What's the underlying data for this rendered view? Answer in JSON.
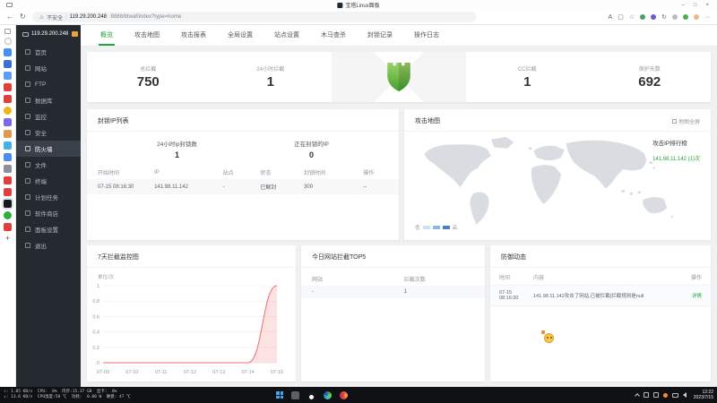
{
  "browser": {
    "window_title": "宝塔Linux面板",
    "nav": {
      "security_label": "不安全",
      "url_host": "119.29.200.248",
      "url_path": ":8888/btwaf/index?type=home",
      "right_icons": [
        {
          "name": "read-aloud-icon",
          "glyph": "A"
        },
        {
          "name": "collections-icon",
          "glyph": "▢"
        },
        {
          "name": "favorites-icon",
          "glyph": "☆"
        },
        {
          "name": "extension-icon",
          "dot": "#4f9e62"
        },
        {
          "name": "extension-icon",
          "dot": "#6f5bd0"
        },
        {
          "name": "history-icon",
          "glyph": "↻"
        },
        {
          "name": "extension-icon",
          "dot": "#b9bdc3"
        },
        {
          "name": "extension-icon",
          "dot": "#4fae4e"
        },
        {
          "name": "profile-avatar",
          "dot": "#e8b88a"
        },
        {
          "name": "more-menu-icon",
          "glyph": "···"
        }
      ]
    },
    "vertical_tabs": [
      {
        "name": "tab-favicon",
        "color": "#4a8cf7"
      },
      {
        "name": "tab-favicon",
        "color": "#3a6fd8"
      },
      {
        "name": "tab-favicon",
        "color": "#5a9cf8"
      },
      {
        "name": "tab-favicon",
        "color": "#e23e3e"
      },
      {
        "name": "tab-favicon",
        "color": "#e23e3e"
      },
      {
        "name": "tab-favicon",
        "color": "#f0b41e",
        "round": true
      },
      {
        "name": "tab-favicon",
        "color": "#7b68ee"
      },
      {
        "name": "tab-favicon",
        "color": "#e09a4e"
      },
      {
        "name": "tab-favicon",
        "color": "#44b0e8"
      },
      {
        "name": "tab-favicon",
        "color": "#4a8cf7"
      },
      {
        "name": "tab-favicon",
        "color": "#8a8f98"
      },
      {
        "name": "tab-favicon",
        "color": "#e23e3e"
      },
      {
        "name": "tab-favicon",
        "color": "#e23e3e"
      },
      {
        "name": "tab-favicon-active",
        "color": "#17181c",
        "active": true
      },
      {
        "name": "tab-favicon",
        "color": "#2fae3e",
        "round": true
      },
      {
        "name": "tab-favicon",
        "color": "#e23e3e"
      }
    ]
  },
  "icons": {
    "back": "←",
    "refresh": "↻",
    "warning": "⚠",
    "minimize": "–",
    "maximize": "□",
    "close": "×",
    "new_tab": "+",
    "divider": "|"
  },
  "panel": {
    "sidebar": {
      "server_ip": "119.29.200.248",
      "items": [
        {
          "label": "首页",
          "icon": "home-icon",
          "active": false
        },
        {
          "label": "网站",
          "icon": "website-icon",
          "active": false
        },
        {
          "label": "FTP",
          "icon": "ftp-icon",
          "active": false
        },
        {
          "label": "数据库",
          "icon": "database-icon",
          "active": false
        },
        {
          "label": "监控",
          "icon": "monitor-icon",
          "active": false
        },
        {
          "label": "安全",
          "icon": "security-icon",
          "active": false
        },
        {
          "label": "防火墙",
          "icon": "firewall-icon",
          "active": true
        },
        {
          "label": "文件",
          "icon": "files-icon",
          "active": false
        },
        {
          "label": "终端",
          "icon": "terminal-icon",
          "active": false
        },
        {
          "label": "计划任务",
          "icon": "cron-icon",
          "active": false
        },
        {
          "label": "软件商店",
          "icon": "appstore-icon",
          "active": false
        },
        {
          "label": "面板设置",
          "icon": "settings-icon",
          "active": false
        },
        {
          "label": "退出",
          "icon": "logout-icon",
          "active": false
        }
      ]
    },
    "tabs": [
      {
        "label": "概览",
        "active": true
      },
      {
        "label": "攻击地图",
        "active": false
      },
      {
        "label": "攻击报表",
        "active": false
      },
      {
        "label": "全局设置",
        "active": false
      },
      {
        "label": "站点设置",
        "active": false
      },
      {
        "label": "木马查杀",
        "active": false
      },
      {
        "label": "封锁记录",
        "active": false
      },
      {
        "label": "操作日志",
        "active": false
      }
    ],
    "stats": {
      "left": [
        {
          "label": "总拦截",
          "value": "750"
        },
        {
          "label": "24小时拦截",
          "value": "1"
        }
      ],
      "right": [
        {
          "label": "CC拦截",
          "value": "1"
        },
        {
          "label": "保护天数",
          "value": "692"
        }
      ]
    },
    "block_panel": {
      "title": "封锁IP列表",
      "metrics": [
        {
          "label": "24小时ip封锁数",
          "value": "1"
        },
        {
          "label": "正在封锁的IP",
          "value": "0"
        }
      ],
      "columns": [
        "开始时间",
        "IP",
        "站点",
        "状态",
        "封锁时间",
        "操作"
      ],
      "rows": [
        [
          "07-15 08:16:30",
          "141.98.11.142",
          "-",
          "已解封",
          "300",
          "--"
        ]
      ]
    },
    "map_panel": {
      "title": "攻击地图",
      "fullscreen_label": "地图全屏",
      "ranking_title": "攻击IP排行榜",
      "ranking_entry": "141.98.11.142 (1)次",
      "legend_low": "低",
      "legend_high": "高"
    },
    "trend_panel": {
      "title": "7天拦截监控图",
      "unit_label": "单位/次"
    },
    "top5_panel": {
      "title": "今日网站拦截TOP5",
      "columns": [
        "网站",
        "拦截次数"
      ],
      "rows": [
        [
          "-",
          "1"
        ]
      ]
    },
    "defense_panel": {
      "title": "防御动态",
      "columns": [
        "时间",
        "内容",
        "操作"
      ],
      "rows": [
        {
          "time": "07-15 08:16:30",
          "content": "141.98.11.142攻击了网站,已被拦截|拦截规则是null",
          "action": "详情"
        }
      ]
    }
  },
  "chart_data": {
    "type": "area",
    "title": "7天拦截监控图",
    "ylabel": "单位/次",
    "x": [
      "07-09",
      "07-10",
      "07-11",
      "07-12",
      "07-13",
      "07-14",
      "07-15"
    ],
    "series": [
      {
        "name": "拦截次数",
        "values": [
          0,
          0,
          0,
          0,
          0,
          0,
          1
        ]
      }
    ],
    "ylim": [
      0,
      1
    ],
    "yticks": [
      0,
      0.2,
      0.4,
      0.6,
      0.8,
      1
    ],
    "grid": true,
    "legend_position": "none",
    "line_color": "#f56c6c",
    "fill_color": "rgba(245,108,108,0.2)"
  },
  "taskbar": {
    "monitor_line1": "↑: 1.85 KB/s  CPU:  0%  内存:15.37 GB  显卡:  0%",
    "monitor_line2": "↓: 13.6 KB/s  CPU温度:58 ℃  功耗:  0.00 W  硬盘: 47 ℃",
    "time": "12:22",
    "date": "2023/7/15"
  },
  "colors": {
    "accent_green": "#20a53a",
    "sidebar_bg": "#252a31",
    "chart_line": "#f56c6c",
    "badge_orange": "#e6a23c"
  }
}
